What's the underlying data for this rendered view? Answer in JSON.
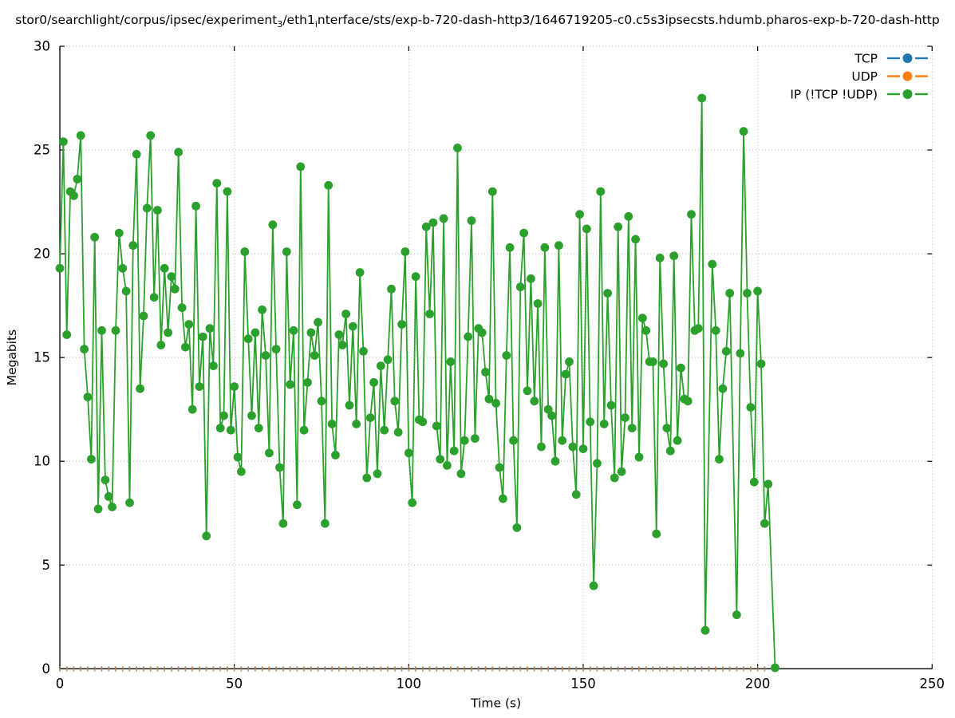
{
  "title": {
    "segments": [
      {
        "text": "stor0/searchlight/corpus/ipsec/experiment",
        "sub": false
      },
      {
        "text": "3",
        "sub": true
      },
      {
        "text": "/eth1",
        "sub": false
      },
      {
        "text": "i",
        "sub": true
      },
      {
        "text": "nterface/sts/exp-b-720-dash-http3/1646719205-c0.c5s3ipsecsts.hdumb.pharos-exp-b-720-dash-http",
        "sub": false
      }
    ]
  },
  "axes": {
    "xlabel": "Time (s)",
    "ylabel": "Megabits",
    "xlim": [
      0,
      250
    ],
    "ylim": [
      0,
      30
    ],
    "x_ticks": [
      0,
      50,
      100,
      150,
      200,
      250
    ],
    "y_ticks": [
      0,
      5,
      10,
      15,
      20,
      25,
      30
    ],
    "grid": "dotted"
  },
  "legend": {
    "position": "upper-right",
    "entries": [
      {
        "label": "TCP",
        "color": "#1f77b4"
      },
      {
        "label": "UDP",
        "color": "#ff7f0e"
      },
      {
        "label": "IP (!TCP  !UDP)",
        "color": "#2ca02c"
      }
    ]
  },
  "chart_data": {
    "type": "line",
    "title": "stor0/searchlight/corpus/ipsec/experiment_3/eth1_interface/sts/exp-b-720-dash-http3/1646719205-c0.c5s3ipsecsts.hdumb.pharos-exp-b-720-dash-http",
    "xlabel": "Time (s)",
    "ylabel": "Megabits",
    "xlim": [
      0,
      250
    ],
    "ylim": [
      0,
      30
    ],
    "legend_position": "upper-right",
    "grid": true,
    "series": [
      {
        "name": "TCP",
        "color": "#1f77b4",
        "style": "zero-line",
        "zero_points": {
          "t_start": 0,
          "t_end": 202,
          "step": 2,
          "value": 0
        }
      },
      {
        "name": "UDP",
        "color": "#ff7f0e",
        "style": "zero-line",
        "zero_points": {
          "t_start": 0,
          "t_end": 202,
          "step": 2,
          "value": 0
        }
      },
      {
        "name": "IP (!TCP  !UDP)",
        "color": "#2ca02c",
        "style": "line-markers",
        "points": [
          [
            0,
            19.3
          ],
          [
            1,
            25.4
          ],
          [
            2,
            16.1
          ],
          [
            3,
            23.0
          ],
          [
            4,
            22.8
          ],
          [
            5,
            23.6
          ],
          [
            6,
            25.7
          ],
          [
            7,
            15.4
          ],
          [
            8,
            13.1
          ],
          [
            9,
            10.1
          ],
          [
            10,
            20.8
          ],
          [
            11,
            7.7
          ],
          [
            12,
            16.3
          ],
          [
            13,
            9.1
          ],
          [
            14,
            8.3
          ],
          [
            15,
            7.8
          ],
          [
            16,
            16.3
          ],
          [
            17,
            21.0
          ],
          [
            18,
            19.3
          ],
          [
            19,
            18.2
          ],
          [
            20,
            8.0
          ],
          [
            21,
            20.4
          ],
          [
            22,
            24.8
          ],
          [
            23,
            13.5
          ],
          [
            24,
            17.0
          ],
          [
            25,
            22.2
          ],
          [
            26,
            25.7
          ],
          [
            27,
            17.9
          ],
          [
            28,
            22.1
          ],
          [
            29,
            15.6
          ],
          [
            30,
            19.3
          ],
          [
            31,
            16.2
          ],
          [
            32,
            18.9
          ],
          [
            33,
            18.3
          ],
          [
            34,
            24.9
          ],
          [
            35,
            17.4
          ],
          [
            36,
            15.5
          ],
          [
            37,
            16.6
          ],
          [
            38,
            12.5
          ],
          [
            39,
            22.3
          ],
          [
            40,
            13.6
          ],
          [
            41,
            16.0
          ],
          [
            42,
            6.4
          ],
          [
            43,
            16.4
          ],
          [
            44,
            14.6
          ],
          [
            45,
            23.4
          ],
          [
            46,
            11.6
          ],
          [
            47,
            12.2
          ],
          [
            48,
            23.0
          ],
          [
            49,
            11.5
          ],
          [
            50,
            13.6
          ],
          [
            51,
            10.2
          ],
          [
            52,
            9.5
          ],
          [
            53,
            20.1
          ],
          [
            54,
            15.9
          ],
          [
            55,
            12.2
          ],
          [
            56,
            16.2
          ],
          [
            57,
            11.6
          ],
          [
            58,
            17.3
          ],
          [
            59,
            15.1
          ],
          [
            60,
            10.4
          ],
          [
            61,
            21.4
          ],
          [
            62,
            15.4
          ],
          [
            63,
            9.7
          ],
          [
            64,
            7.0
          ],
          [
            65,
            20.1
          ],
          [
            66,
            13.7
          ],
          [
            67,
            16.3
          ],
          [
            68,
            7.9
          ],
          [
            69,
            24.2
          ],
          [
            70,
            11.5
          ],
          [
            71,
            13.8
          ],
          [
            72,
            16.2
          ],
          [
            73,
            15.1
          ],
          [
            74,
            16.7
          ],
          [
            75,
            12.9
          ],
          [
            76,
            7.0
          ],
          [
            77,
            23.3
          ],
          [
            78,
            11.8
          ],
          [
            79,
            10.3
          ],
          [
            80,
            16.1
          ],
          [
            81,
            15.6
          ],
          [
            82,
            17.1
          ],
          [
            83,
            12.7
          ],
          [
            84,
            16.5
          ],
          [
            85,
            11.8
          ],
          [
            86,
            19.1
          ],
          [
            87,
            15.3
          ],
          [
            88,
            9.2
          ],
          [
            89,
            12.1
          ],
          [
            90,
            13.8
          ],
          [
            91,
            9.4
          ],
          [
            92,
            14.6
          ],
          [
            93,
            11.5
          ],
          [
            94,
            14.9
          ],
          [
            95,
            18.3
          ],
          [
            96,
            12.9
          ],
          [
            97,
            11.4
          ],
          [
            98,
            16.6
          ],
          [
            99,
            20.1
          ],
          [
            100,
            10.4
          ],
          [
            101,
            8.0
          ],
          [
            102,
            18.9
          ],
          [
            103,
            12.0
          ],
          [
            104,
            11.9
          ],
          [
            105,
            21.3
          ],
          [
            106,
            17.1
          ],
          [
            107,
            21.5
          ],
          [
            108,
            11.7
          ],
          [
            109,
            10.1
          ],
          [
            110,
            21.7
          ],
          [
            111,
            9.8
          ],
          [
            112,
            14.8
          ],
          [
            113,
            10.5
          ],
          [
            114,
            25.1
          ],
          [
            115,
            9.4
          ],
          [
            116,
            11.0
          ],
          [
            117,
            16.0
          ],
          [
            118,
            21.6
          ],
          [
            119,
            11.1
          ],
          [
            120,
            16.4
          ],
          [
            121,
            16.2
          ],
          [
            122,
            14.3
          ],
          [
            123,
            13.0
          ],
          [
            124,
            23.0
          ],
          [
            125,
            12.8
          ],
          [
            126,
            9.7
          ],
          [
            127,
            8.2
          ],
          [
            128,
            15.1
          ],
          [
            129,
            20.3
          ],
          [
            130,
            11.0
          ],
          [
            131,
            6.8
          ],
          [
            132,
            18.4
          ],
          [
            133,
            21.0
          ],
          [
            134,
            13.4
          ],
          [
            135,
            18.8
          ],
          [
            136,
            12.9
          ],
          [
            137,
            17.6
          ],
          [
            138,
            10.7
          ],
          [
            139,
            20.3
          ],
          [
            140,
            12.5
          ],
          [
            141,
            12.2
          ],
          [
            142,
            10.0
          ],
          [
            143,
            20.4
          ],
          [
            144,
            11.0
          ],
          [
            145,
            14.2
          ],
          [
            146,
            14.8
          ],
          [
            147,
            10.7
          ],
          [
            148,
            8.4
          ],
          [
            149,
            21.9
          ],
          [
            150,
            10.6
          ],
          [
            151,
            21.2
          ],
          [
            152,
            11.9
          ],
          [
            153,
            4.0
          ],
          [
            154,
            9.9
          ],
          [
            155,
            23.0
          ],
          [
            156,
            11.8
          ],
          [
            157,
            18.1
          ],
          [
            158,
            12.7
          ],
          [
            159,
            9.2
          ],
          [
            160,
            21.3
          ],
          [
            161,
            9.5
          ],
          [
            162,
            12.1
          ],
          [
            163,
            21.8
          ],
          [
            164,
            11.6
          ],
          [
            165,
            20.7
          ],
          [
            166,
            10.2
          ],
          [
            167,
            16.9
          ],
          [
            168,
            16.3
          ],
          [
            169,
            14.8
          ],
          [
            170,
            14.8
          ],
          [
            171,
            6.5
          ],
          [
            172,
            19.8
          ],
          [
            173,
            14.7
          ],
          [
            174,
            11.6
          ],
          [
            175,
            10.5
          ],
          [
            176,
            19.9
          ],
          [
            177,
            11.0
          ],
          [
            178,
            14.5
          ],
          [
            179,
            13.0
          ],
          [
            180,
            12.9
          ],
          [
            181,
            21.9
          ],
          [
            182,
            16.3
          ],
          [
            183,
            16.4
          ],
          [
            184,
            27.5
          ],
          [
            185,
            1.85
          ],
          [
            187,
            19.5
          ],
          [
            188,
            16.3
          ],
          [
            189,
            10.1
          ],
          [
            190,
            13.5
          ],
          [
            191,
            15.3
          ],
          [
            192,
            18.1
          ],
          [
            194,
            2.6
          ],
          [
            195,
            15.2
          ],
          [
            196,
            25.9
          ],
          [
            197,
            18.1
          ],
          [
            198,
            12.6
          ],
          [
            199,
            9.0
          ],
          [
            200,
            18.2
          ],
          [
            201,
            14.7
          ],
          [
            202,
            7.0
          ],
          [
            203,
            8.9
          ],
          [
            205,
            0.05
          ]
        ]
      }
    ]
  }
}
